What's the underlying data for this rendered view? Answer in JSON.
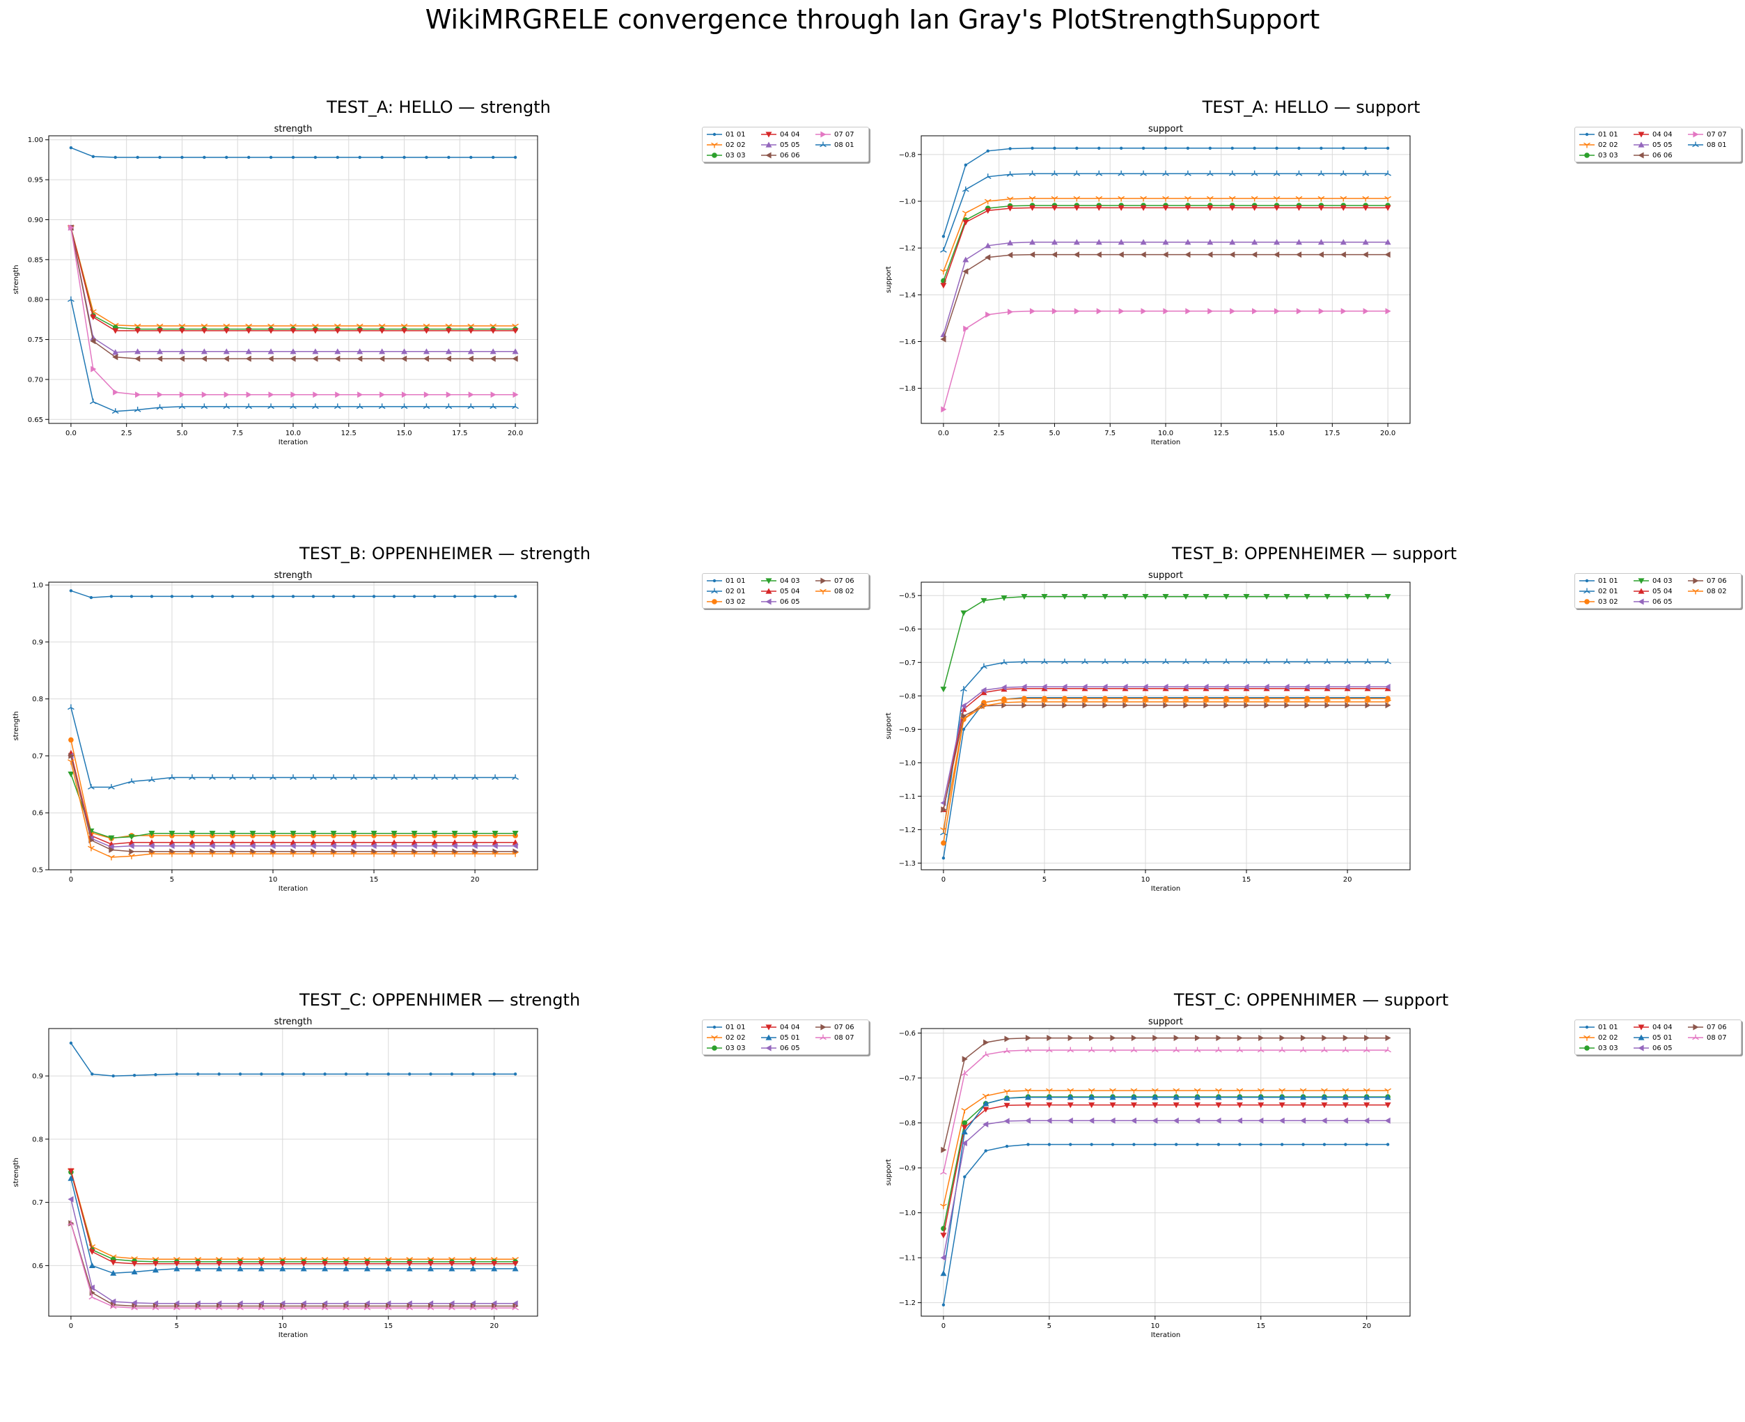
{
  "figure_title": "WikiMRGRELE convergence through Ian Gray's PlotStrengthSupport",
  "colors": {
    "tab_blue": "#1f77b4",
    "tab_orange": "#ff7f0e",
    "tab_green": "#2ca02c",
    "tab_red": "#d62728",
    "tab_purple": "#9467bd",
    "tab_brown": "#8c564b",
    "tab_pink": "#e377c2",
    "grid": "#d9d9d9"
  },
  "chart_data": [
    {
      "type": "line",
      "panel_title": "TEST_A: HELLO — strength",
      "title": "strength",
      "xlabel": "Iteration",
      "ylabel": "strength",
      "x": [
        0,
        1,
        2,
        3,
        4,
        5,
        6,
        7,
        8,
        9,
        10,
        11,
        12,
        13,
        14,
        15,
        16,
        17,
        18,
        19,
        20
      ],
      "xlim": [
        -1,
        21
      ],
      "ylim": [
        0.645,
        1.005
      ],
      "xticks": [
        0.0,
        2.5,
        5.0,
        7.5,
        10.0,
        12.5,
        15.0,
        17.5,
        20.0
      ],
      "xtick_labels": [
        "0.0",
        "2.5",
        "5.0",
        "7.5",
        "10.0",
        "12.5",
        "15.0",
        "17.5",
        "20.0"
      ],
      "yticks": [
        0.65,
        0.7,
        0.75,
        0.8,
        0.85,
        0.9,
        0.95,
        1.0
      ],
      "ytick_labels": [
        "0.65",
        "0.70",
        "0.75",
        "0.80",
        "0.85",
        "0.90",
        "0.95",
        "1.00"
      ],
      "grid": true,
      "legend": "outside right",
      "series": [
        {
          "name": "01 01",
          "color": "#1f77b4",
          "marker": "point",
          "start": [
            0.99,
            0.979
          ],
          "final": 0.978
        },
        {
          "name": "02 02",
          "color": "#ff7f0e",
          "marker": "tri_down",
          "start": [
            0.89,
            0.785,
            0.768
          ],
          "final": 0.767
        },
        {
          "name": "03 03",
          "color": "#2ca02c",
          "marker": "circle",
          "start": [
            0.89,
            0.78,
            0.765
          ],
          "final": 0.763
        },
        {
          "name": "04 04",
          "color": "#d62728",
          "marker": "triangle_down",
          "start": [
            0.89,
            0.778,
            0.761
          ],
          "final": 0.761
        },
        {
          "name": "05 05",
          "color": "#9467bd",
          "marker": "triangle_up",
          "start": [
            0.89,
            0.752,
            0.734
          ],
          "final": 0.735
        },
        {
          "name": "06 06",
          "color": "#8c564b",
          "marker": "triangle_left",
          "start": [
            0.89,
            0.748,
            0.728
          ],
          "final": 0.726
        },
        {
          "name": "07 07",
          "color": "#e377c2",
          "marker": "triangle_right",
          "start": [
            0.89,
            0.713,
            0.684,
            0.681
          ],
          "final": 0.681
        },
        {
          "name": "08 01",
          "color": "#1f77b4",
          "marker": "tri_up",
          "start": [
            0.8,
            0.672,
            0.66,
            0.662,
            0.665
          ],
          "final": 0.666
        }
      ]
    },
    {
      "type": "line",
      "panel_title": "TEST_A: HELLO — support",
      "title": "support",
      "xlabel": "Iteration",
      "ylabel": "support",
      "x": [
        0,
        1,
        2,
        3,
        4,
        5,
        6,
        7,
        8,
        9,
        10,
        11,
        12,
        13,
        14,
        15,
        16,
        17,
        18,
        19,
        20
      ],
      "xlim": [
        -1,
        21
      ],
      "ylim": [
        -1.95,
        -0.72
      ],
      "xticks": [
        0.0,
        2.5,
        5.0,
        7.5,
        10.0,
        12.5,
        15.0,
        17.5,
        20.0
      ],
      "xtick_labels": [
        "0.0",
        "2.5",
        "5.0",
        "7.5",
        "10.0",
        "12.5",
        "15.0",
        "17.5",
        "20.0"
      ],
      "yticks": [
        -1.8,
        -1.6,
        -1.4,
        -1.2,
        -1.0,
        -0.8
      ],
      "ytick_labels": [
        "−1.8",
        "−1.6",
        "−1.4",
        "−1.2",
        "−1.0",
        "−0.8"
      ],
      "grid": true,
      "legend": "outside right",
      "series": [
        {
          "name": "01 01",
          "color": "#1f77b4",
          "marker": "point",
          "start": [
            -1.15,
            -0.845,
            -0.785,
            -0.775
          ],
          "final": -0.773
        },
        {
          "name": "02 02",
          "color": "#ff7f0e",
          "marker": "tri_down",
          "start": [
            -1.3,
            -1.05,
            -1.0,
            -0.99
          ],
          "final": -0.988
        },
        {
          "name": "03 03",
          "color": "#2ca02c",
          "marker": "circle",
          "start": [
            -1.34,
            -1.08,
            -1.03,
            -1.02
          ],
          "final": -1.018
        },
        {
          "name": "04 04",
          "color": "#d62728",
          "marker": "triangle_down",
          "start": [
            -1.36,
            -1.09,
            -1.04,
            -1.03
          ],
          "final": -1.028
        },
        {
          "name": "05 05",
          "color": "#9467bd",
          "marker": "triangle_up",
          "start": [
            -1.57,
            -1.25,
            -1.19,
            -1.178
          ],
          "final": -1.175
        },
        {
          "name": "06 06",
          "color": "#8c564b",
          "marker": "triangle_left",
          "start": [
            -1.59,
            -1.3,
            -1.24,
            -1.23
          ],
          "final": -1.228
        },
        {
          "name": "07 07",
          "color": "#e377c2",
          "marker": "triangle_right",
          "start": [
            -1.89,
            -1.545,
            -1.485,
            -1.473
          ],
          "final": -1.47
        },
        {
          "name": "08 01",
          "color": "#1f77b4",
          "marker": "tri_up",
          "start": [
            -1.21,
            -0.95,
            -0.895,
            -0.885
          ],
          "final": -0.882
        }
      ]
    },
    {
      "type": "line",
      "panel_title": "TEST_B: OPPENHEIMER — strength",
      "title": "strength",
      "xlabel": "Iteration",
      "ylabel": "strength",
      "x": [
        0,
        1,
        2,
        3,
        4,
        5,
        6,
        7,
        8,
        9,
        10,
        11,
        12,
        13,
        14,
        15,
        16,
        17,
        18,
        19,
        20,
        21,
        22
      ],
      "xlim": [
        -1.1,
        23.1
      ],
      "ylim": [
        0.5,
        1.005
      ],
      "xticks": [
        0,
        5,
        10,
        15,
        20
      ],
      "xtick_labels": [
        "0",
        "5",
        "10",
        "15",
        "20"
      ],
      "yticks": [
        0.5,
        0.6,
        0.7,
        0.8,
        0.9,
        1.0
      ],
      "ytick_labels": [
        "0.5",
        "0.6",
        "0.7",
        "0.8",
        "0.9",
        "1.0"
      ],
      "grid": true,
      "legend": "outside right",
      "series": [
        {
          "name": "01 01",
          "color": "#1f77b4",
          "marker": "point",
          "start": [
            0.99,
            0.978
          ],
          "final": 0.98
        },
        {
          "name": "02 01",
          "color": "#1f77b4",
          "marker": "tri_up",
          "start": [
            0.785,
            0.645,
            0.645,
            0.655,
            0.658
          ],
          "final": 0.662
        },
        {
          "name": "03 02",
          "color": "#ff7f0e",
          "marker": "circle",
          "start": [
            0.728,
            0.565,
            0.555
          ],
          "final": 0.56
        },
        {
          "name": "04 03",
          "color": "#2ca02c",
          "marker": "triangle_down",
          "start": [
            0.668,
            0.568,
            0.556,
            0.558
          ],
          "final": 0.564
        },
        {
          "name": "05 04",
          "color": "#d62728",
          "marker": "triangle_up",
          "start": [
            0.705,
            0.56,
            0.545
          ],
          "final": 0.548
        },
        {
          "name": "06 05",
          "color": "#9467bd",
          "marker": "triangle_left",
          "start": [
            0.7,
            0.555,
            0.54
          ],
          "final": 0.542
        },
        {
          "name": "07 06",
          "color": "#8c564b",
          "marker": "triangle_right",
          "start": [
            0.7,
            0.552,
            0.535
          ],
          "final": 0.532
        },
        {
          "name": "08 02",
          "color": "#ff7f0e",
          "marker": "tri_down",
          "start": [
            0.69,
            0.538,
            0.522,
            0.524
          ],
          "final": 0.528
        }
      ]
    },
    {
      "type": "line",
      "panel_title": "TEST_B: OPPENHEIMER — support",
      "title": "support",
      "xlabel": "Iteration",
      "ylabel": "support",
      "x": [
        0,
        1,
        2,
        3,
        4,
        5,
        6,
        7,
        8,
        9,
        10,
        11,
        12,
        13,
        14,
        15,
        16,
        17,
        18,
        19,
        20,
        21,
        22
      ],
      "xlim": [
        -1.1,
        23.1
      ],
      "ylim": [
        -1.32,
        -0.46
      ],
      "xticks": [
        0,
        5,
        10,
        15,
        20
      ],
      "xtick_labels": [
        "0",
        "5",
        "10",
        "15",
        "20"
      ],
      "yticks": [
        -1.3,
        -1.2,
        -1.1,
        -1.0,
        -0.9,
        -0.8,
        -0.7,
        -0.6,
        -0.5
      ],
      "ytick_labels": [
        "−1.3",
        "−1.2",
        "−1.1",
        "−1.0",
        "−0.9",
        "−0.8",
        "−0.7",
        "−0.6",
        "−0.5"
      ],
      "grid": true,
      "legend": "outside right",
      "series": [
        {
          "name": "01 01",
          "color": "#1f77b4",
          "marker": "point",
          "start": [
            -1.285,
            -0.9,
            -0.82,
            -0.81
          ],
          "final": -0.805
        },
        {
          "name": "02 01",
          "color": "#1f77b4",
          "marker": "tri_up",
          "start": [
            -1.21,
            -0.78,
            -0.712,
            -0.7
          ],
          "final": -0.698
        },
        {
          "name": "03 02",
          "color": "#ff7f0e",
          "marker": "circle",
          "start": [
            -1.24,
            -0.87,
            -0.82,
            -0.81
          ],
          "final": -0.808
        },
        {
          "name": "04 03",
          "color": "#2ca02c",
          "marker": "triangle_down",
          "start": [
            -0.78,
            -0.552,
            -0.515,
            -0.507
          ],
          "final": -0.503
        },
        {
          "name": "05 04",
          "color": "#d62728",
          "marker": "triangle_up",
          "start": [
            -1.14,
            -0.84,
            -0.79,
            -0.78
          ],
          "final": -0.778
        },
        {
          "name": "06 05",
          "color": "#9467bd",
          "marker": "triangle_left",
          "start": [
            -1.12,
            -0.83,
            -0.783,
            -0.775
          ],
          "final": -0.773
        },
        {
          "name": "07 06",
          "color": "#8c564b",
          "marker": "triangle_right",
          "start": [
            -1.14,
            -0.86,
            -0.83,
            -0.828
          ],
          "final": -0.828
        },
        {
          "name": "08 02",
          "color": "#ff7f0e",
          "marker": "tri_down",
          "start": [
            -1.2,
            -0.87,
            -0.83,
            -0.82
          ],
          "final": -0.818
        }
      ]
    },
    {
      "type": "line",
      "panel_title": "TEST_C: OPPENHIMER — strength",
      "title": "strength",
      "xlabel": "Iteration",
      "ylabel": "strength",
      "x": [
        0,
        1,
        2,
        3,
        4,
        5,
        6,
        7,
        8,
        9,
        10,
        11,
        12,
        13,
        14,
        15,
        16,
        17,
        18,
        19,
        20,
        21
      ],
      "xlim": [
        -1.05,
        22.05
      ],
      "ylim": [
        0.52,
        0.975
      ],
      "xticks": [
        0,
        5,
        10,
        15,
        20
      ],
      "xtick_labels": [
        "0",
        "5",
        "10",
        "15",
        "20"
      ],
      "yticks": [
        0.6,
        0.7,
        0.8,
        0.9
      ],
      "ytick_labels": [
        "0.6",
        "0.7",
        "0.8",
        "0.9"
      ],
      "grid": true,
      "legend": "outside right",
      "series": [
        {
          "name": "01 01",
          "color": "#1f77b4",
          "marker": "point",
          "start": [
            0.952,
            0.903,
            0.9,
            0.901,
            0.902
          ],
          "final": 0.903
        },
        {
          "name": "02 02",
          "color": "#ff7f0e",
          "marker": "tri_down",
          "start": [
            0.75,
            0.63,
            0.614,
            0.611
          ],
          "final": 0.61
        },
        {
          "name": "03 03",
          "color": "#2ca02c",
          "marker": "circle",
          "start": [
            0.748,
            0.625,
            0.61,
            0.607
          ],
          "final": 0.606
        },
        {
          "name": "04 04",
          "color": "#d62728",
          "marker": "triangle_down",
          "start": [
            0.75,
            0.622,
            0.605,
            0.603
          ],
          "final": 0.603
        },
        {
          "name": "05 01",
          "color": "#1f77b4",
          "marker": "triangle_up",
          "start": [
            0.738,
            0.6,
            0.588,
            0.59,
            0.593
          ],
          "final": 0.595
        },
        {
          "name": "06 05",
          "color": "#9467bd",
          "marker": "triangle_left",
          "start": [
            0.705,
            0.565,
            0.543,
            0.541
          ],
          "final": 0.54
        },
        {
          "name": "07 06",
          "color": "#8c564b",
          "marker": "triangle_right",
          "start": [
            0.667,
            0.557,
            0.538,
            0.536
          ],
          "final": 0.536
        },
        {
          "name": "08 07",
          "color": "#e377c2",
          "marker": "tri_up",
          "start": [
            0.667,
            0.55,
            0.535,
            0.533
          ],
          "final": 0.533
        }
      ]
    },
    {
      "type": "line",
      "panel_title": "TEST_C: OPPENHIMER — support",
      "title": "support",
      "xlabel": "Iteration",
      "ylabel": "support",
      "x": [
        0,
        1,
        2,
        3,
        4,
        5,
        6,
        7,
        8,
        9,
        10,
        11,
        12,
        13,
        14,
        15,
        16,
        17,
        18,
        19,
        20,
        21
      ],
      "xlim": [
        -1.05,
        22.05
      ],
      "ylim": [
        -1.23,
        -0.59
      ],
      "xticks": [
        0,
        5,
        10,
        15,
        20
      ],
      "xtick_labels": [
        "0",
        "5",
        "10",
        "15",
        "20"
      ],
      "yticks": [
        -1.2,
        -1.1,
        -1.0,
        -0.9,
        -0.8,
        -0.7,
        -0.6
      ],
      "ytick_labels": [
        "−1.2",
        "−1.1",
        "−1.0",
        "−0.9",
        "−0.8",
        "−0.7",
        "−0.6"
      ],
      "grid": true,
      "legend": "outside right",
      "series": [
        {
          "name": "01 01",
          "color": "#1f77b4",
          "marker": "point",
          "start": [
            -1.205,
            -0.92,
            -0.862,
            -0.852
          ],
          "final": -0.848
        },
        {
          "name": "02 02",
          "color": "#ff7f0e",
          "marker": "tri_down",
          "start": [
            -0.985,
            -0.772,
            -0.74,
            -0.73
          ],
          "final": -0.728
        },
        {
          "name": "03 03",
          "color": "#2ca02c",
          "marker": "circle",
          "start": [
            -1.035,
            -0.8,
            -0.757,
            -0.745
          ],
          "final": -0.742
        },
        {
          "name": "04 04",
          "color": "#d62728",
          "marker": "triangle_down",
          "start": [
            -1.05,
            -0.81,
            -0.77,
            -0.761
          ],
          "final": -0.76
        },
        {
          "name": "05 01",
          "color": "#1f77b4",
          "marker": "triangle_up",
          "start": [
            -1.135,
            -0.82,
            -0.757,
            -0.745
          ],
          "final": -0.743
        },
        {
          "name": "06 05",
          "color": "#9467bd",
          "marker": "triangle_left",
          "start": [
            -1.1,
            -0.845,
            -0.803,
            -0.796
          ],
          "final": -0.795
        },
        {
          "name": "07 06",
          "color": "#8c564b",
          "marker": "triangle_right",
          "start": [
            -0.86,
            -0.658,
            -0.621,
            -0.613
          ],
          "final": -0.611
        },
        {
          "name": "08 07",
          "color": "#e377c2",
          "marker": "tri_up",
          "start": [
            -0.91,
            -0.69,
            -0.648,
            -0.64
          ],
          "final": -0.638
        }
      ]
    }
  ]
}
